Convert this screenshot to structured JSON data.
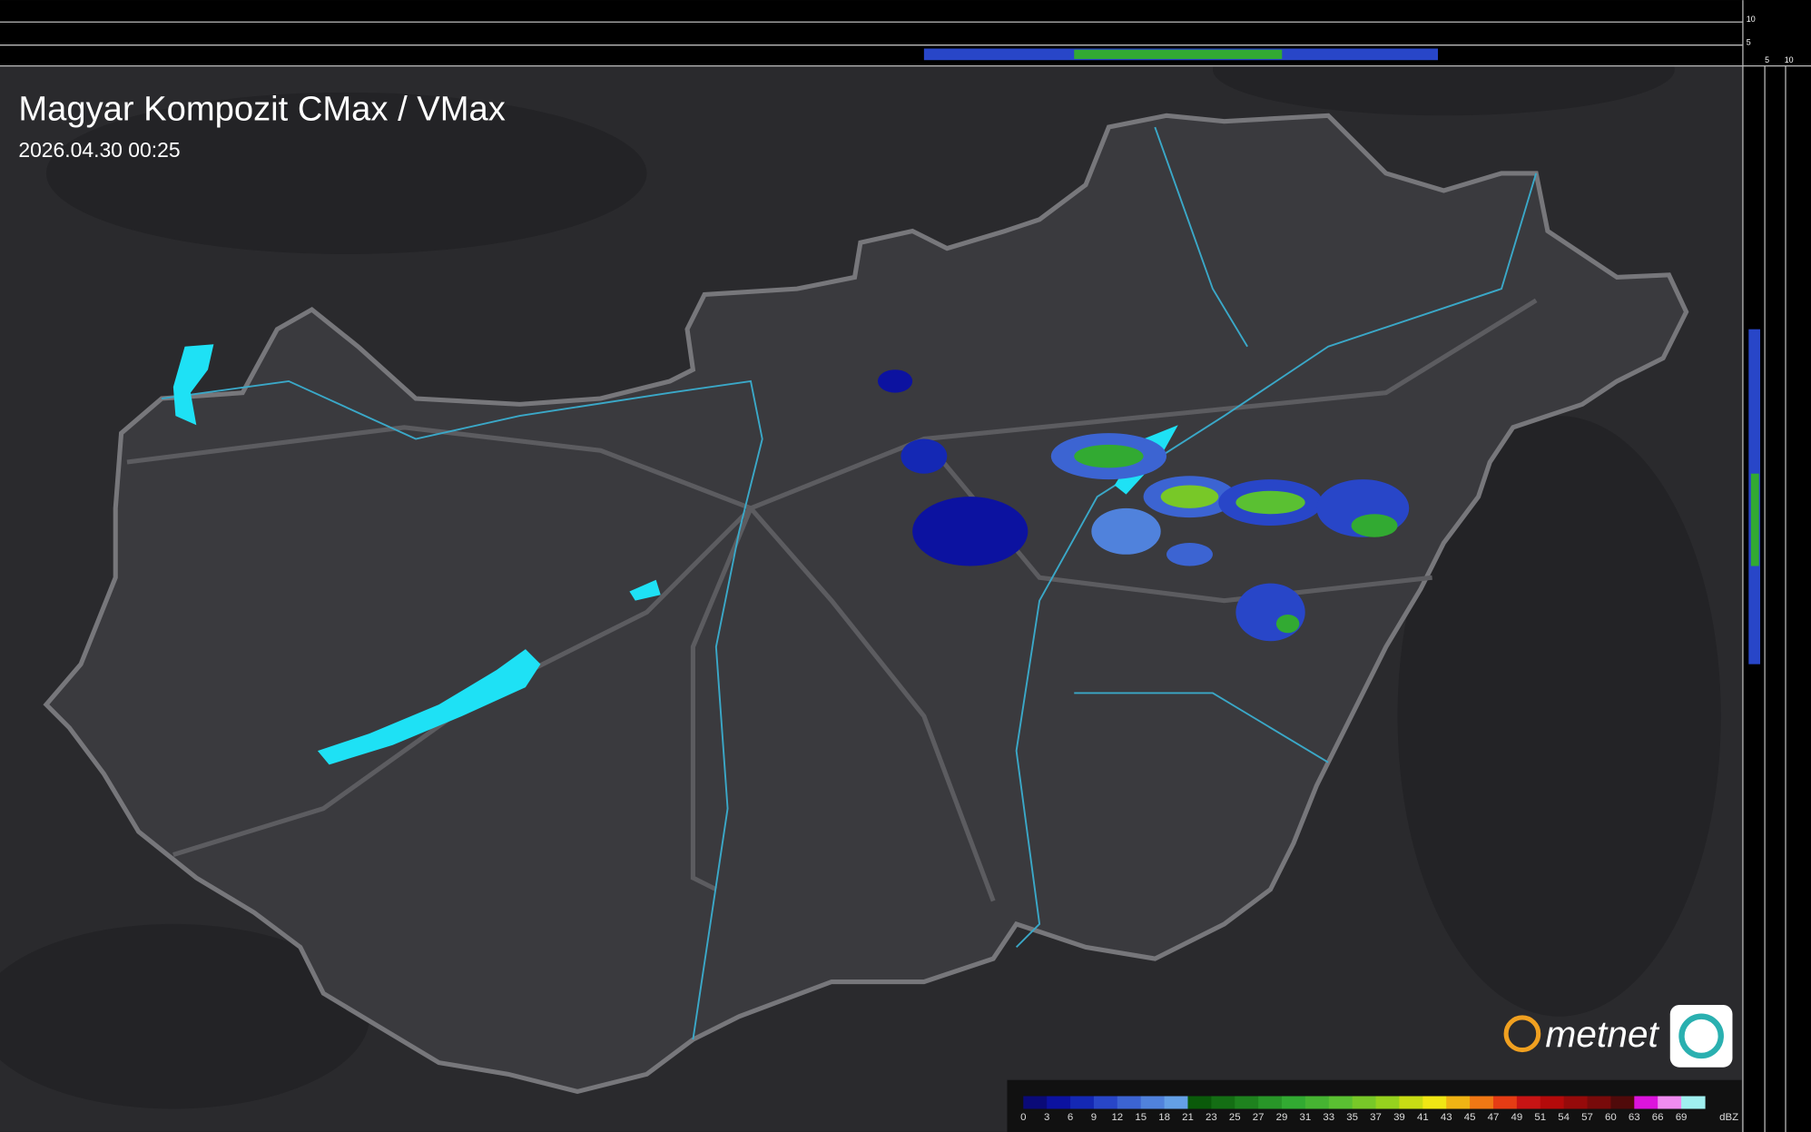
{
  "header": {
    "title": "Magyar Kompozit CMax / VMax",
    "timestamp": "2026.04.30 00:25"
  },
  "profile_axes": {
    "top": [
      "10",
      "5"
    ],
    "side": [
      "5",
      "10"
    ]
  },
  "logo": {
    "text": "metnet"
  },
  "legend": {
    "unit": "dBZ",
    "levels": [
      {
        "label": "0",
        "color": "#0a0a78"
      },
      {
        "label": "3",
        "color": "#0c12a0"
      },
      {
        "label": "6",
        "color": "#1428b4"
      },
      {
        "label": "9",
        "color": "#2846c8"
      },
      {
        "label": "12",
        "color": "#3c64d2"
      },
      {
        "label": "15",
        "color": "#5082dc"
      },
      {
        "label": "18",
        "color": "#64a0e6"
      },
      {
        "label": "21",
        "color": "#0a5a0a"
      },
      {
        "label": "23",
        "color": "#146e14"
      },
      {
        "label": "25",
        "color": "#1e821e"
      },
      {
        "label": "27",
        "color": "#289628"
      },
      {
        "label": "29",
        "color": "#32aa32"
      },
      {
        "label": "31",
        "color": "#46b432"
      },
      {
        "label": "33",
        "color": "#5ac032"
      },
      {
        "label": "35",
        "color": "#78c828"
      },
      {
        "label": "37",
        "color": "#96d21e"
      },
      {
        "label": "39",
        "color": "#c8dc14"
      },
      {
        "label": "41",
        "color": "#f0e614"
      },
      {
        "label": "43",
        "color": "#f0b414"
      },
      {
        "label": "45",
        "color": "#f07814"
      },
      {
        "label": "47",
        "color": "#e63c14"
      },
      {
        "label": "49",
        "color": "#c81414"
      },
      {
        "label": "51",
        "color": "#b40a0a"
      },
      {
        "label": "54",
        "color": "#960a0a"
      },
      {
        "label": "57",
        "color": "#780a0a"
      },
      {
        "label": "60",
        "color": "#500a0a"
      },
      {
        "label": "63",
        "color": "#dc14dc"
      },
      {
        "label": "66",
        "color": "#f08cf0"
      },
      {
        "label": "69",
        "color": "#a0f0f0"
      }
    ]
  }
}
